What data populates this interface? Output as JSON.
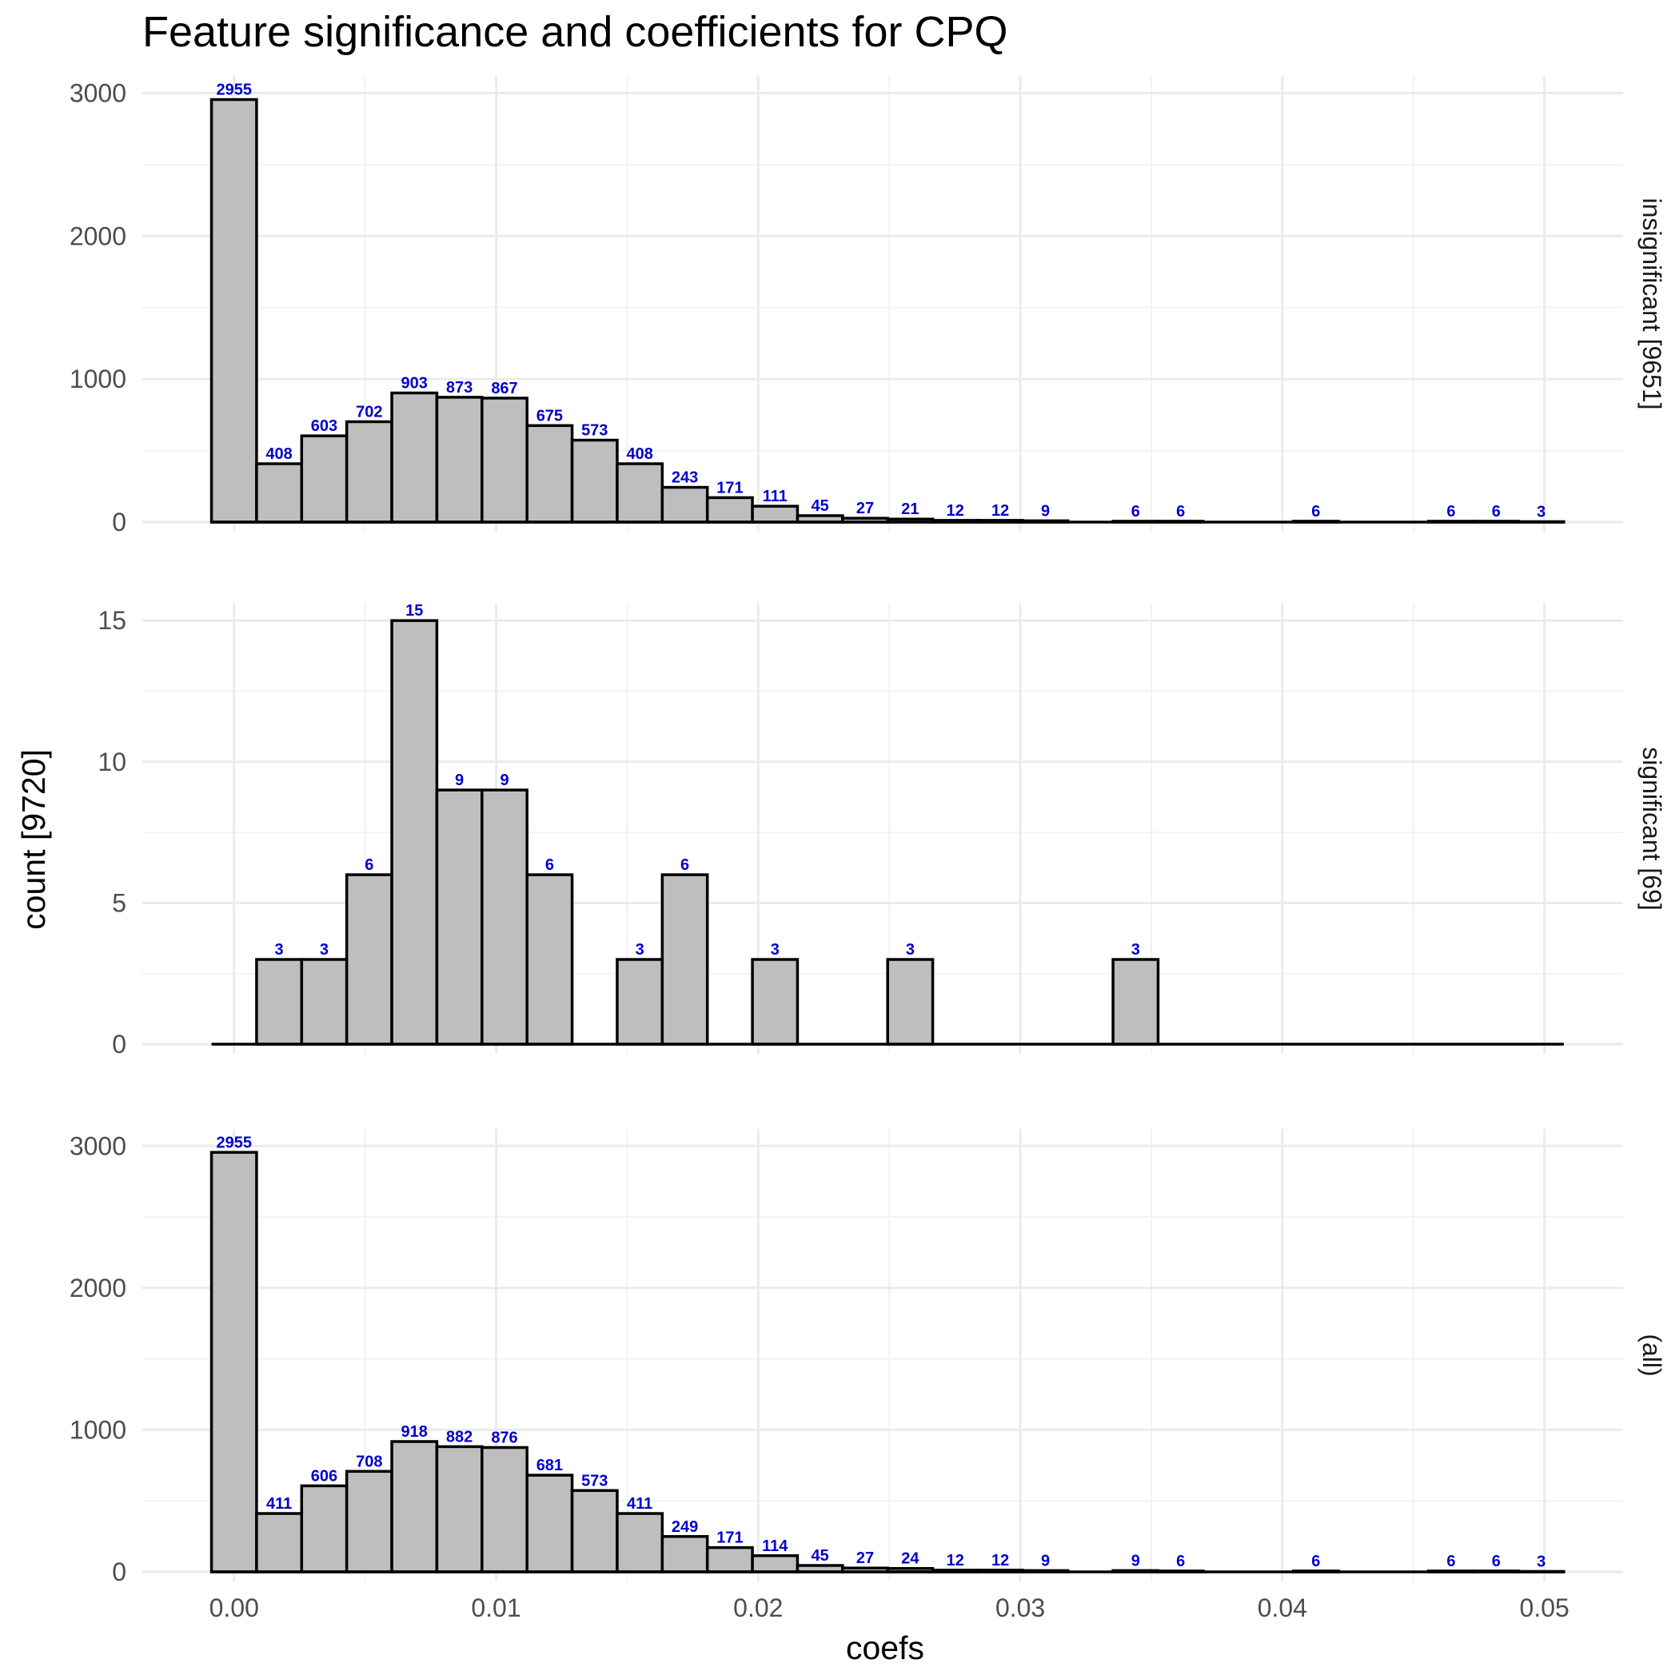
{
  "chart_data": {
    "type": "bar",
    "title": "Feature significance and coefficients for CPQ",
    "xlabel": "coefs",
    "ylabel": "count [9720]",
    "xlim": [
      -0.0035,
      0.053
    ],
    "x_ticks": [
      0.0,
      0.01,
      0.02,
      0.03,
      0.04,
      0.05
    ],
    "x_tick_labels": [
      "0.00",
      "0.01",
      "0.02",
      "0.03",
      "0.04",
      "0.05"
    ],
    "bin_width": 0.00172,
    "bin_centers": [
      0.0,
      0.00172,
      0.00344,
      0.00516,
      0.00688,
      0.0086,
      0.01032,
      0.01204,
      0.01376,
      0.01548,
      0.0172,
      0.01892,
      0.02064,
      0.02236,
      0.02408,
      0.0258,
      0.02752,
      0.02924,
      0.03096,
      0.03268,
      0.0344,
      0.03612,
      0.03784,
      0.03956,
      0.04128,
      0.043,
      0.04472,
      0.04644,
      0.04816,
      0.04988
    ],
    "grid": true,
    "panels": [
      {
        "strip": "insignificant [9651]",
        "ylim": [
          0,
          3000
        ],
        "y_ticks": [
          0,
          1000,
          2000,
          3000
        ],
        "y_tick_labels": [
          "0",
          "1000",
          "2000",
          "3000"
        ],
        "values": [
          2955,
          408,
          603,
          702,
          903,
          873,
          867,
          675,
          573,
          408,
          243,
          171,
          111,
          45,
          27,
          21,
          12,
          12,
          9,
          0,
          6,
          6,
          0,
          0,
          6,
          0,
          0,
          6,
          6,
          3
        ]
      },
      {
        "strip": "significant [69]",
        "ylim": [
          0,
          15
        ],
        "y_ticks": [
          0,
          5,
          10,
          15
        ],
        "y_tick_labels": [
          "0",
          "5",
          "10",
          "15"
        ],
        "values": [
          0,
          3,
          3,
          6,
          15,
          9,
          9,
          6,
          0,
          3,
          6,
          0,
          3,
          0,
          0,
          3,
          0,
          0,
          0,
          0,
          3,
          0,
          0,
          0,
          0,
          0,
          0,
          0,
          0,
          0
        ]
      },
      {
        "strip": "(all)",
        "ylim": [
          0,
          3000
        ],
        "y_ticks": [
          0,
          1000,
          2000,
          3000
        ],
        "y_tick_labels": [
          "0",
          "1000",
          "2000",
          "3000"
        ],
        "values": [
          2955,
          411,
          606,
          708,
          918,
          882,
          876,
          681,
          573,
          411,
          249,
          171,
          114,
          45,
          27,
          24,
          12,
          12,
          9,
          0,
          9,
          6,
          0,
          0,
          6,
          0,
          0,
          6,
          6,
          3
        ]
      }
    ],
    "colors": {
      "bar_fill": "#bebebe",
      "bar_stroke": "#000000",
      "label": "#0000cc"
    }
  }
}
